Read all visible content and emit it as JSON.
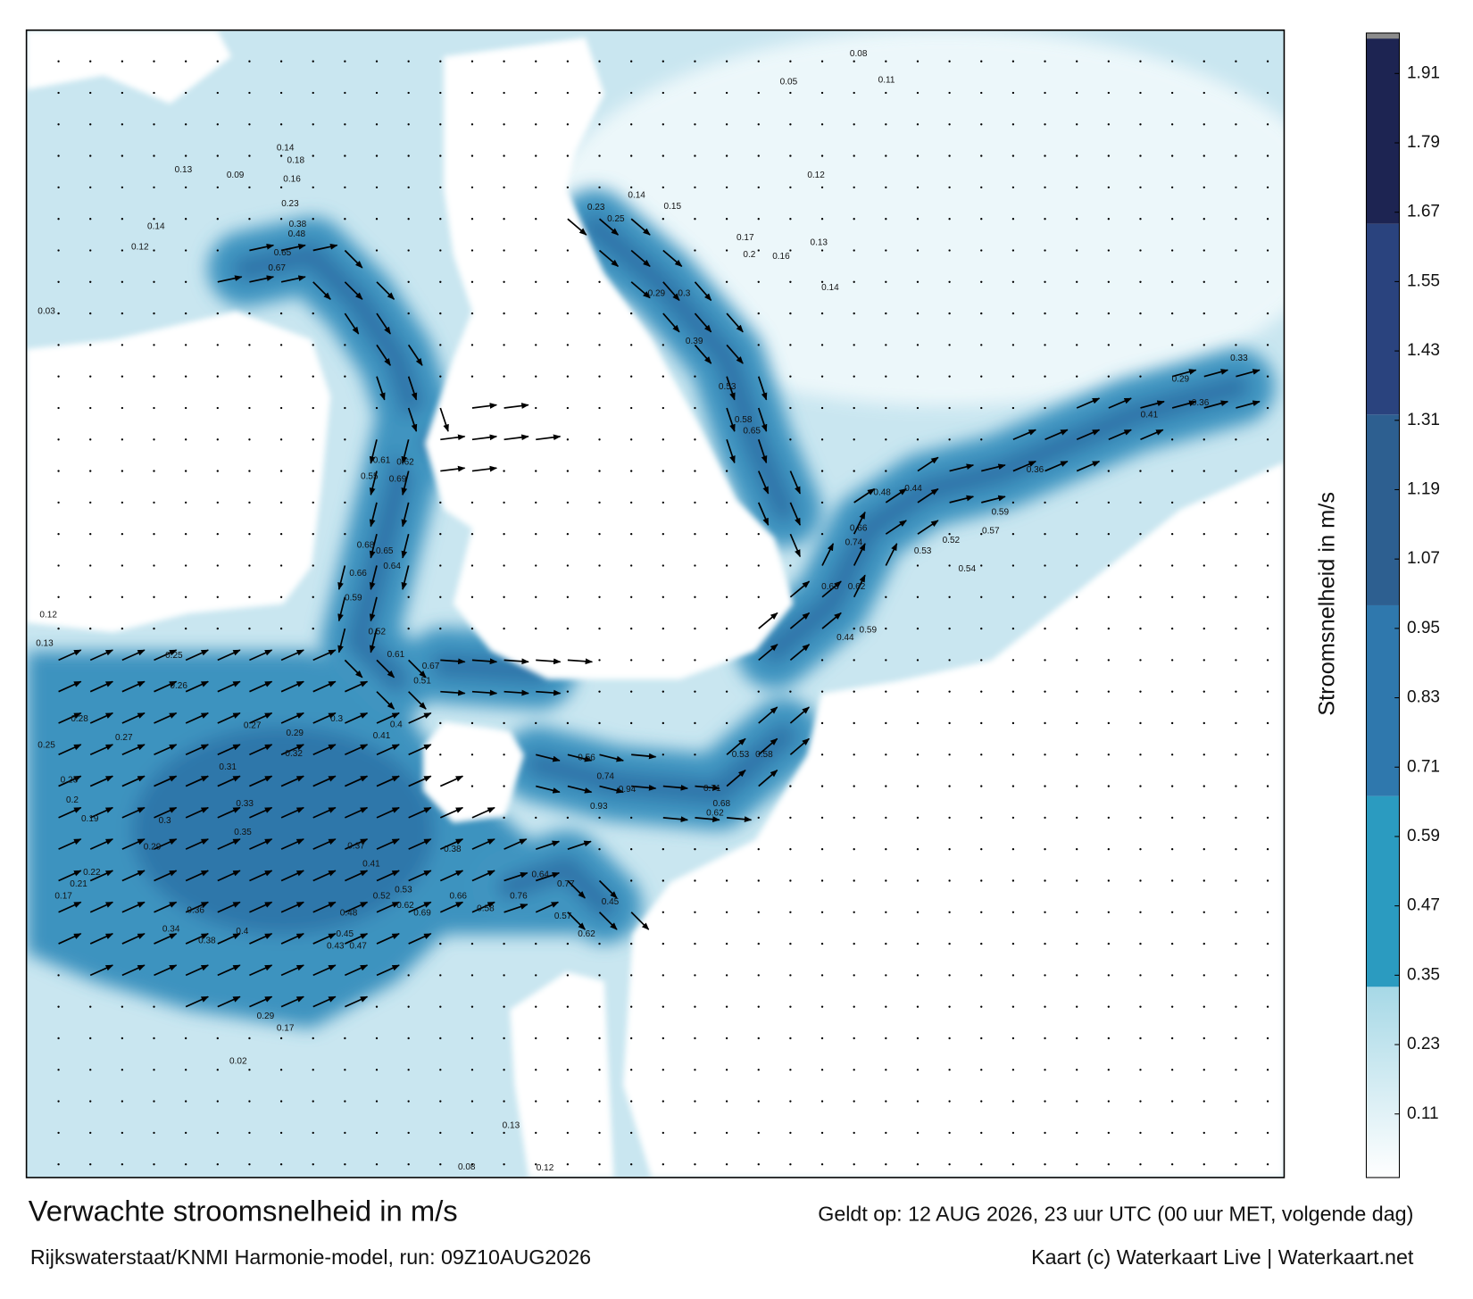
{
  "map": {
    "title": "Verwachte stroomsnelheid in m/s",
    "valid_time": "Geldt op: 12 AUG 2026, 23 uur UTC (00 uur MET, volgende dag)",
    "source": "Rijkswaterstaat/KNMI Harmonie-model, run: 09Z10AUG2026",
    "credit": "Kaart (c) Waterkaart Live | Waterkaart.net",
    "speed_labels": [
      0.65,
      0.67,
      0.48,
      0.38,
      0.23,
      0.61,
      0.62,
      0.55,
      0.69,
      0.68,
      0.65,
      0.66,
      0.64,
      0.59,
      0.52,
      0.61,
      0.67,
      0.51,
      0.94,
      0.93,
      0.74,
      0.71,
      0.68,
      0.62,
      0.56,
      0.58,
      0.53,
      0.77,
      0.64,
      0.76,
      0.57,
      0.45,
      0.62,
      0.58,
      0.66,
      0.69,
      0.62,
      0.53,
      0.52,
      0.48,
      0.41,
      0.38,
      0.37,
      0.35,
      0.33,
      0.3,
      0.29,
      0.28,
      0.27,
      0.26,
      0.25,
      0.27,
      0.29,
      0.3,
      0.41,
      0.4,
      0.32,
      0.31,
      0.66,
      0.74,
      0.62,
      0.63,
      0.59,
      0.44,
      0.53,
      0.52,
      0.54,
      0.59,
      0.57,
      0.48,
      0.44,
      0.36,
      0.41,
      0.36,
      0.33,
      0.29,
      0.58,
      0.65,
      0.53,
      0.39,
      0.29,
      0.3,
      0.17,
      0.16,
      0.2,
      0.12,
      0.08,
      0.11,
      0.05,
      0.14,
      0.15,
      0.25,
      0.23,
      0.13,
      0.14,
      0.02,
      0.08,
      0.12,
      0.13,
      0.17,
      0.29,
      0.43,
      0.47,
      0.45,
      0.34,
      0.36,
      0.38,
      0.4,
      0.22,
      0.21,
      0.17,
      0.19,
      0.2,
      0.23,
      0.25,
      0.13,
      0.12,
      0.03,
      0.12,
      0.14,
      0.13,
      0.09,
      0.18,
      0.14,
      0.16
    ]
  },
  "colorbar": {
    "label": "Stroomsnelheid in m/s",
    "lim": [
      0,
      1.98
    ],
    "ticks": [
      0.11,
      0.23,
      0.35,
      0.47,
      0.59,
      0.71,
      0.83,
      0.95,
      1.07,
      1.19,
      1.31,
      1.43,
      1.55,
      1.67,
      1.79,
      1.91
    ],
    "colors": [
      "#a6d8e6",
      "#2b9bc0",
      "#2f78ad",
      "#2d5f90",
      "#2a437e",
      "#1d2452"
    ]
  }
}
